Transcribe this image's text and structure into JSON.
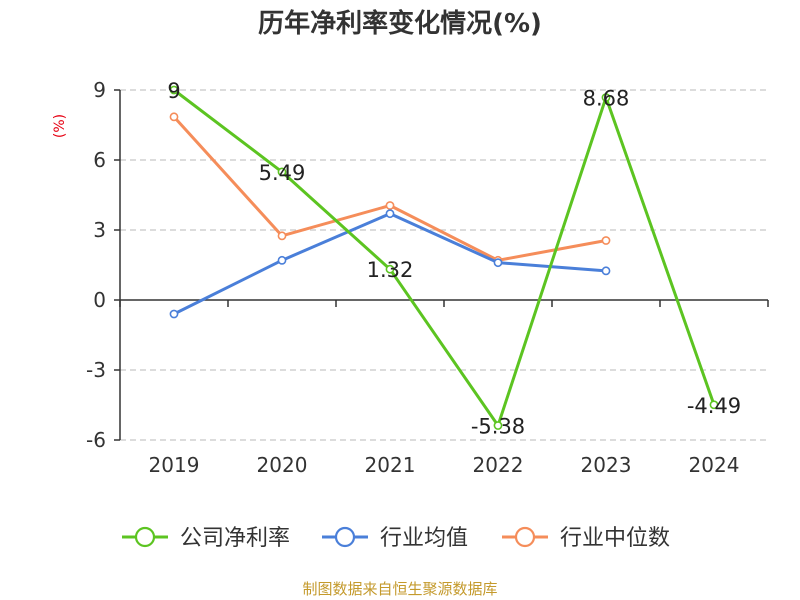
{
  "chart_data": {
    "type": "line",
    "title": "历年净利率变化情况(%)",
    "y_unit_label": "(%)",
    "categories": [
      "2019",
      "2020",
      "2021",
      "2022",
      "2023",
      "2024"
    ],
    "ylim": [
      -6,
      9
    ],
    "yticks": [
      9,
      6,
      3,
      0,
      -3,
      -6
    ],
    "ytick_labels": [
      "9",
      "6",
      "3",
      "0",
      "-3",
      "-6"
    ],
    "grid": true,
    "legend_position": "bottom",
    "series": [
      {
        "name": "公司净利率",
        "color": "#5cc421",
        "values": [
          9,
          5.49,
          1.32,
          -5.38,
          8.68,
          -4.49
        ],
        "data_labels": [
          "9",
          "5.49",
          "1.32",
          "-5.38",
          "8.68",
          "-4.49"
        ]
      },
      {
        "name": "行业均值",
        "color": "#4a7fd9",
        "values": [
          -0.6,
          1.7,
          3.7,
          1.6,
          1.25,
          null
        ]
      },
      {
        "name": "行业中位数",
        "color": "#f58d5a",
        "values": [
          7.85,
          2.75,
          4.05,
          1.7,
          2.55,
          null
        ]
      }
    ],
    "source": "制图数据来自恒生聚源数据库"
  }
}
